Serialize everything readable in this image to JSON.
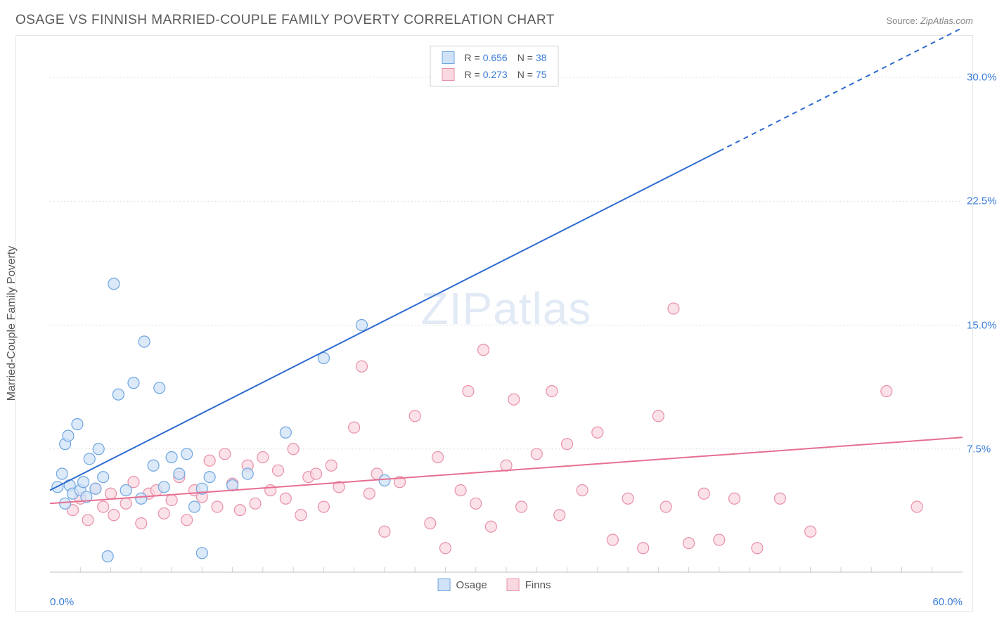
{
  "header": {
    "title": "OSAGE VS FINNISH MARRIED-COUPLE FAMILY POVERTY CORRELATION CHART",
    "source_label": "Source: ",
    "source_value": "ZipAtlas.com"
  },
  "chart": {
    "type": "scatter",
    "ylabel": "Married-Couple Family Poverty",
    "xlim": [
      0,
      60
    ],
    "ylim": [
      0,
      32
    ],
    "x_axis_min_label": "0.0%",
    "x_axis_max_label": "60.0%",
    "y_ticks": [
      {
        "value": 7.5,
        "label": "7.5%"
      },
      {
        "value": 15.0,
        "label": "15.0%"
      },
      {
        "value": 22.5,
        "label": "22.5%"
      },
      {
        "value": 30.0,
        "label": "30.0%"
      }
    ],
    "x_ticks_minor": [
      2,
      4,
      6,
      8,
      10,
      12,
      14,
      16,
      18,
      20,
      22,
      24,
      26,
      28,
      30,
      32,
      34,
      36,
      38,
      40,
      42,
      44,
      46,
      48,
      50,
      52,
      54,
      56,
      58
    ],
    "grid_color": "#dcdcdc",
    "tick_color": "#cfcfcf",
    "axis_color": "#bfbfbf",
    "background_color": "#ffffff",
    "marker_radius": 8,
    "marker_stroke_width": 1.2,
    "line_width": 2,
    "watermark": "ZIPatlas",
    "series": {
      "osage": {
        "label": "Osage",
        "fill": "#cfe2f7",
        "stroke": "#6ea6e0",
        "line_color": "#2e6bd0",
        "R": "0.656",
        "N": "38",
        "trend": {
          "x1": 0,
          "y1": 5.0,
          "x2": 60,
          "y2": 33.0
        },
        "dash_start_x": 44,
        "points": [
          [
            0.5,
            5.2
          ],
          [
            0.8,
            6.0
          ],
          [
            1.0,
            4.2
          ],
          [
            1.0,
            7.8
          ],
          [
            1.2,
            8.3
          ],
          [
            1.3,
            5.3
          ],
          [
            1.5,
            4.8
          ],
          [
            1.8,
            9.0
          ],
          [
            2.0,
            5.0
          ],
          [
            2.2,
            5.5
          ],
          [
            2.4,
            4.6
          ],
          [
            2.6,
            6.9
          ],
          [
            3.0,
            5.1
          ],
          [
            3.2,
            7.5
          ],
          [
            3.5,
            5.8
          ],
          [
            3.8,
            1.0
          ],
          [
            4.2,
            17.5
          ],
          [
            4.5,
            10.8
          ],
          [
            5.0,
            5.0
          ],
          [
            5.5,
            11.5
          ],
          [
            6.0,
            4.5
          ],
          [
            6.2,
            14.0
          ],
          [
            6.8,
            6.5
          ],
          [
            7.2,
            11.2
          ],
          [
            7.5,
            5.2
          ],
          [
            8.0,
            7.0
          ],
          [
            8.5,
            6.0
          ],
          [
            9.0,
            7.2
          ],
          [
            9.5,
            4.0
          ],
          [
            10.0,
            5.1
          ],
          [
            10.5,
            5.8
          ],
          [
            10.0,
            1.2
          ],
          [
            12.0,
            5.3
          ],
          [
            13.0,
            6.0
          ],
          [
            15.5,
            8.5
          ],
          [
            18.0,
            13.0
          ],
          [
            20.5,
            15.0
          ],
          [
            22.0,
            5.6
          ]
        ]
      },
      "finns": {
        "label": "Finns",
        "fill": "#f9d8e0",
        "stroke": "#e890a8",
        "line_color": "#e76f91",
        "R": "0.273",
        "N": "75",
        "trend": {
          "x1": 0,
          "y1": 4.2,
          "x2": 60,
          "y2": 8.2
        },
        "points": [
          [
            1.5,
            3.8
          ],
          [
            2.0,
            4.5
          ],
          [
            2.5,
            3.2
          ],
          [
            3.0,
            5.1
          ],
          [
            3.5,
            4.0
          ],
          [
            4.0,
            4.8
          ],
          [
            4.2,
            3.5
          ],
          [
            5.0,
            4.2
          ],
          [
            5.5,
            5.5
          ],
          [
            6.0,
            3.0
          ],
          [
            6.5,
            4.8
          ],
          [
            7.0,
            5.0
          ],
          [
            7.5,
            3.6
          ],
          [
            8.0,
            4.4
          ],
          [
            8.5,
            5.8
          ],
          [
            9.0,
            3.2
          ],
          [
            9.5,
            5.0
          ],
          [
            10.0,
            4.6
          ],
          [
            10.5,
            6.8
          ],
          [
            11.0,
            4.0
          ],
          [
            11.5,
            7.2
          ],
          [
            12.0,
            5.4
          ],
          [
            12.5,
            3.8
          ],
          [
            13.0,
            6.5
          ],
          [
            13.5,
            4.2
          ],
          [
            14.0,
            7.0
          ],
          [
            14.5,
            5.0
          ],
          [
            15.0,
            6.2
          ],
          [
            15.5,
            4.5
          ],
          [
            16.0,
            7.5
          ],
          [
            16.5,
            3.5
          ],
          [
            17.0,
            5.8
          ],
          [
            17.5,
            6.0
          ],
          [
            18.0,
            4.0
          ],
          [
            18.5,
            6.5
          ],
          [
            19.0,
            5.2
          ],
          [
            20.0,
            8.8
          ],
          [
            20.5,
            12.5
          ],
          [
            21.0,
            4.8
          ],
          [
            21.5,
            6.0
          ],
          [
            22.0,
            2.5
          ],
          [
            23.0,
            5.5
          ],
          [
            24.0,
            9.5
          ],
          [
            25.0,
            3.0
          ],
          [
            25.5,
            7.0
          ],
          [
            26.0,
            1.5
          ],
          [
            27.0,
            5.0
          ],
          [
            27.5,
            11.0
          ],
          [
            28.0,
            4.2
          ],
          [
            28.5,
            13.5
          ],
          [
            29.0,
            2.8
          ],
          [
            30.0,
            6.5
          ],
          [
            30.5,
            10.5
          ],
          [
            31.0,
            4.0
          ],
          [
            32.0,
            7.2
          ],
          [
            33.0,
            11.0
          ],
          [
            33.5,
            3.5
          ],
          [
            34.0,
            7.8
          ],
          [
            35.0,
            5.0
          ],
          [
            36.0,
            8.5
          ],
          [
            37.0,
            2.0
          ],
          [
            38.0,
            4.5
          ],
          [
            39.0,
            1.5
          ],
          [
            40.0,
            9.5
          ],
          [
            40.5,
            4.0
          ],
          [
            41.0,
            16.0
          ],
          [
            42.0,
            1.8
          ],
          [
            43.0,
            4.8
          ],
          [
            44.0,
            2.0
          ],
          [
            45.0,
            4.5
          ],
          [
            46.5,
            1.5
          ],
          [
            48.0,
            4.5
          ],
          [
            50.0,
            2.5
          ],
          [
            55.0,
            11.0
          ],
          [
            57.0,
            4.0
          ]
        ]
      }
    },
    "legend_bottom": [
      {
        "key": "osage"
      },
      {
        "key": "finns"
      }
    ]
  }
}
